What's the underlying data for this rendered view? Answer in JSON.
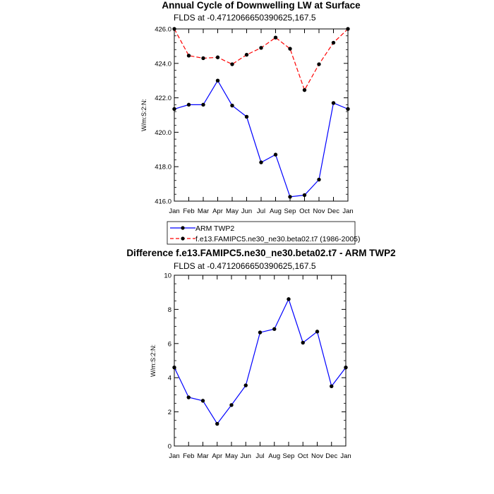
{
  "chart_data": [
    {
      "type": "line",
      "title": "Annual Cycle of Downwelling LW at Surface",
      "subtitle": "FLDS at -0.4712066650390625,167.5",
      "ylabel": "W/m:S:2:N:",
      "xlabel": "",
      "categories": [
        "Jan",
        "Feb",
        "Mar",
        "Apr",
        "May",
        "Jun",
        "Jul",
        "Aug",
        "Sep",
        "Oct",
        "Nov",
        "Dec",
        "Jan"
      ],
      "ylim": [
        416,
        426
      ],
      "yticks": [
        "416.0",
        "418.0",
        "420.0",
        "422.0",
        "424.0",
        "426.0"
      ],
      "legend_position": "bottom",
      "series": [
        {
          "name": "ARM TWP2",
          "color": "#0000ff",
          "dash": "solid",
          "values": [
            421.35,
            421.6,
            421.6,
            423.0,
            421.55,
            420.9,
            418.25,
            418.7,
            416.25,
            416.35,
            417.25,
            421.7,
            421.35
          ]
        },
        {
          "name": "f.e13.FAMIPC5.ne30_ne30.beta02.t7 (1986-2005)",
          "color": "#ff0000",
          "dash": "dashed",
          "values": [
            426.0,
            424.45,
            424.3,
            424.35,
            423.95,
            424.5,
            424.9,
            425.5,
            424.85,
            422.45,
            423.95,
            425.2,
            426.0
          ]
        }
      ]
    },
    {
      "type": "line",
      "title": "Difference f.e13.FAMIPC5.ne30_ne30.beta02.t7 - ARM TWP2",
      "subtitle": "FLDS at -0.4712066650390625,167.5",
      "ylabel": "W/m:S:2:N:",
      "xlabel": "",
      "categories": [
        "Jan",
        "Feb",
        "Mar",
        "Apr",
        "May",
        "Jun",
        "Jul",
        "Aug",
        "Sep",
        "Oct",
        "Nov",
        "Dec",
        "Jan"
      ],
      "ylim": [
        0,
        10
      ],
      "yticks": [
        "0",
        "2",
        "4",
        "6",
        "8",
        "10"
      ],
      "series": [
        {
          "color": "#0000ff",
          "dash": "solid",
          "values": [
            4.6,
            2.85,
            2.65,
            1.3,
            2.4,
            3.55,
            6.65,
            6.85,
            8.6,
            6.05,
            6.7,
            3.5,
            4.6
          ]
        }
      ]
    }
  ]
}
